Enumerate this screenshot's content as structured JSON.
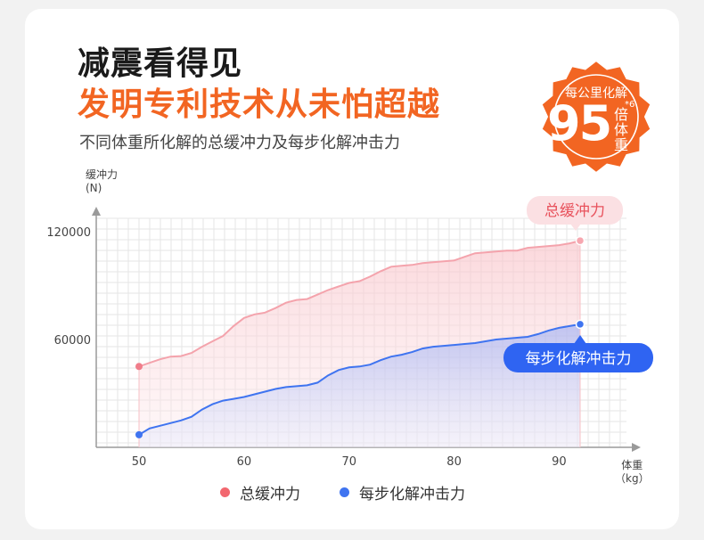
{
  "header": {
    "title_line1": "减震看得见",
    "title_line2": "发明专利技术从未怕超越",
    "subtitle": "不同体重所化解的总缓冲力及每步化解冲击力"
  },
  "badge": {
    "top_text": "每公里化解",
    "number": "95",
    "unit_chars": [
      "倍",
      "体",
      "重"
    ],
    "note": "*6"
  },
  "colors": {
    "orange": "#f26522",
    "pink_series": "#f4a3ac",
    "pink_dot": "#f07d8a",
    "blue_series": "#3f74f0",
    "pink_label_bg": "#fbe0e3",
    "pink_label_text": "#e8525c",
    "blue_label_bg": "#2f64f2"
  },
  "chart_data": {
    "type": "area",
    "ylabel": "缓冲力",
    "ylabel_unit": "(N)",
    "xlabel": "体重",
    "xlabel_unit": "（kg）",
    "xlim": [
      45,
      95
    ],
    "ylim": [
      0,
      130000
    ],
    "x_ticks": [
      50,
      60,
      70,
      80,
      90
    ],
    "y_ticks": [
      60000,
      120000
    ],
    "grid": true,
    "legend_position": "bottom",
    "series": [
      {
        "name": "总缓冲力",
        "callout": "总缓冲力",
        "x": [
          50,
          51,
          52,
          53,
          54,
          55,
          56,
          57,
          58,
          59,
          60,
          61,
          62,
          63,
          64,
          65,
          66,
          67,
          68,
          69,
          70,
          71,
          72,
          73,
          74,
          75,
          76,
          77,
          78,
          79,
          80,
          81,
          82,
          83,
          84,
          85,
          86,
          87,
          88,
          89,
          90,
          91,
          92
        ],
        "values": [
          45000,
          47000,
          49000,
          50500,
          50800,
          52500,
          56000,
          59000,
          62000,
          67500,
          72000,
          74000,
          75000,
          77500,
          80500,
          82000,
          82500,
          85000,
          87500,
          89500,
          91500,
          92500,
          95000,
          98000,
          100500,
          101000,
          101500,
          102500,
          103000,
          103500,
          104000,
          106000,
          108000,
          108500,
          109000,
          109500,
          109500,
          111000,
          111500,
          112000,
          112500,
          113500,
          115000
        ]
      },
      {
        "name": "每步化解冲击力",
        "callout": "每步化解冲击力",
        "x": [
          50,
          51,
          52,
          53,
          54,
          55,
          56,
          57,
          58,
          59,
          60,
          61,
          62,
          63,
          64,
          65,
          66,
          67,
          68,
          69,
          70,
          71,
          72,
          73,
          74,
          75,
          76,
          77,
          78,
          79,
          80,
          81,
          82,
          83,
          84,
          85,
          86,
          87,
          88,
          89,
          90,
          91,
          92
        ],
        "values": [
          7000,
          10500,
          12000,
          13500,
          15000,
          17000,
          21000,
          24000,
          26000,
          27000,
          28000,
          29500,
          31000,
          32500,
          33500,
          34000,
          34500,
          36000,
          40000,
          43000,
          44500,
          45000,
          46000,
          48500,
          50500,
          51500,
          53000,
          55000,
          56000,
          56500,
          57000,
          57500,
          58000,
          59000,
          60000,
          60500,
          61000,
          61500,
          63000,
          65000,
          66500,
          67500,
          68500
        ]
      }
    ]
  }
}
